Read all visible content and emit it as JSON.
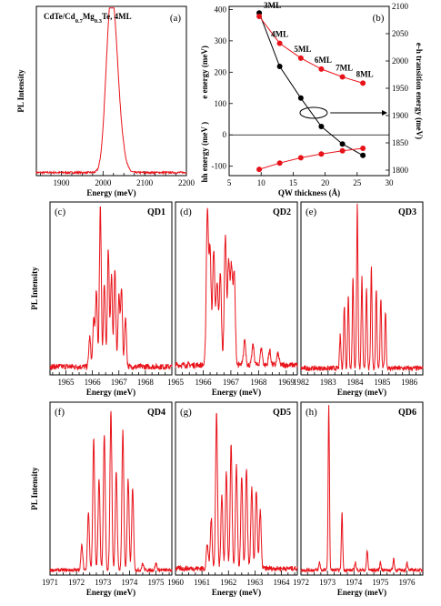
{
  "colors": {
    "curve": "#e8131a",
    "black_series": "#000000",
    "axis": "#000000"
  },
  "chart_data": [
    {
      "id": "a",
      "panel_label": "(a)",
      "type": "line",
      "title": "CdTe/Cd0.7Mg0.3Te, 4ML",
      "title_parts": {
        "main": "CdTe/Cd",
        "sub1": "0.7",
        "mid": "Mg",
        "sub2": "0.3",
        "end": "Te, 4ML"
      },
      "xlabel": "Energy (meV)",
      "ylabel": "PL Intensity",
      "xlim": [
        1840,
        2200
      ],
      "ylim": [
        0,
        1.1
      ],
      "xticks": [
        1900,
        2000,
        2100,
        2200
      ],
      "peaks": [
        {
          "x": 2024,
          "amp": 0.96,
          "w": 17
        },
        {
          "x": 2012,
          "amp": 0.35,
          "w": 14
        },
        {
          "x": 2045,
          "amp": 0.1,
          "w": 14
        }
      ]
    },
    {
      "id": "b",
      "panel_label": "(b)",
      "type": "scatter-line",
      "xlabel": "QW thickness (Å)",
      "ylabel_top": "e energy (meV)",
      "ylabel_bottom": "hh energy  (meV )",
      "ylabel_right": "e-h transition energy  (meV)",
      "xlim": [
        5,
        30
      ],
      "ylim": [
        -130,
        410
      ],
      "y2lim": [
        1790,
        2100
      ],
      "xticks": [
        5,
        10,
        15,
        20,
        25,
        30
      ],
      "yticks": [
        -100,
        0,
        100,
        200,
        300,
        400
      ],
      "y2ticks": [
        1800,
        1850,
        1900,
        1950,
        2000,
        2050,
        2100
      ],
      "series": [
        {
          "name": "e-h transition",
          "axis": "right",
          "color": "black",
          "x": [
            9.7,
            12.9,
            16.2,
            19.4,
            22.7,
            25.9
          ],
          "y": [
            2088,
            1990,
            1932,
            1880,
            1848,
            1827
          ]
        },
        {
          "name": "e",
          "axis": "left",
          "color": "red",
          "x": [
            9.7,
            12.9,
            16.2,
            19.4,
            22.7,
            25.9
          ],
          "y": [
            378,
            292,
            245,
            210,
            185,
            165
          ]
        },
        {
          "name": "hh",
          "axis": "left",
          "color": "red",
          "x": [
            9.7,
            12.9,
            16.2,
            19.4,
            22.7,
            25.9
          ],
          "y": [
            -110,
            -90,
            -73,
            -61,
            -51,
            -43
          ]
        }
      ],
      "point_labels": [
        "3ML",
        "4ML",
        "5ML",
        "6ML",
        "7ML",
        "8ML"
      ]
    },
    {
      "id": "c",
      "panel_label": "(c)",
      "qd_label": "QD1",
      "type": "line",
      "xlabel": "Energy (meV)",
      "ylabel": "PL Intensity",
      "xlim": [
        1964.4,
        1969.0
      ],
      "xticks": [
        1965,
        1966,
        1967,
        1968
      ],
      "ylim": [
        0,
        1.05
      ],
      "peaks": [
        {
          "x": 1965.9,
          "amp": 0.18
        },
        {
          "x": 1966.05,
          "amp": 0.28
        },
        {
          "x": 1966.15,
          "amp": 0.45
        },
        {
          "x": 1966.3,
          "amp": 0.97
        },
        {
          "x": 1966.45,
          "amp": 0.5
        },
        {
          "x": 1966.6,
          "amp": 0.72
        },
        {
          "x": 1966.72,
          "amp": 0.55
        },
        {
          "x": 1966.85,
          "amp": 0.58
        },
        {
          "x": 1967.0,
          "amp": 0.42
        },
        {
          "x": 1967.1,
          "amp": 0.47
        },
        {
          "x": 1967.25,
          "amp": 0.3
        }
      ]
    },
    {
      "id": "d",
      "panel_label": "(d)",
      "qd_label": "QD2",
      "type": "line",
      "xlabel": "Energy (meV)",
      "xlim": [
        1965.0,
        1969.4
      ],
      "xticks": [
        1965,
        1966,
        1967,
        1968,
        1969
      ],
      "ylim": [
        0,
        1.05
      ],
      "peaks": [
        {
          "x": 1966.15,
          "amp": 0.93
        },
        {
          "x": 1966.25,
          "amp": 0.68
        },
        {
          "x": 1966.38,
          "amp": 0.7
        },
        {
          "x": 1966.5,
          "amp": 0.5
        },
        {
          "x": 1966.62,
          "amp": 0.55
        },
        {
          "x": 1966.8,
          "amp": 0.78
        },
        {
          "x": 1966.92,
          "amp": 0.62
        },
        {
          "x": 1967.02,
          "amp": 0.58
        },
        {
          "x": 1967.12,
          "amp": 0.55
        },
        {
          "x": 1967.5,
          "amp": 0.15
        },
        {
          "x": 1967.8,
          "amp": 0.12
        },
        {
          "x": 1968.1,
          "amp": 0.1
        },
        {
          "x": 1968.4,
          "amp": 0.09
        },
        {
          "x": 1968.7,
          "amp": 0.07
        }
      ]
    },
    {
      "id": "e",
      "panel_label": "(e)",
      "qd_label": "QD3",
      "type": "line",
      "xlabel": "Energy (meV)",
      "xlim": [
        1982,
        1986.5
      ],
      "xticks": [
        1982,
        1983,
        1984,
        1985,
        1986
      ],
      "ylim": [
        0,
        1.05
      ],
      "peaks": [
        {
          "x": 1983.45,
          "amp": 0.2
        },
        {
          "x": 1983.6,
          "amp": 0.38
        },
        {
          "x": 1983.75,
          "amp": 0.45
        },
        {
          "x": 1983.92,
          "amp": 0.55
        },
        {
          "x": 1984.08,
          "amp": 1.0
        },
        {
          "x": 1984.25,
          "amp": 0.55
        },
        {
          "x": 1984.42,
          "amp": 0.5
        },
        {
          "x": 1984.6,
          "amp": 0.62
        },
        {
          "x": 1984.78,
          "amp": 0.48
        },
        {
          "x": 1984.95,
          "amp": 0.42
        },
        {
          "x": 1985.12,
          "amp": 0.35
        }
      ]
    },
    {
      "id": "f",
      "panel_label": "(f)",
      "qd_label": "QD4",
      "type": "line",
      "xlabel": "Energy (meV)",
      "ylabel": "PL Intensity",
      "xlim": [
        1971,
        1975.6
      ],
      "xticks": [
        1971,
        1972,
        1973,
        1974,
        1975
      ],
      "ylim": [
        0,
        1.05
      ],
      "peaks": [
        {
          "x": 1972.2,
          "amp": 0.15
        },
        {
          "x": 1972.45,
          "amp": 0.35
        },
        {
          "x": 1972.65,
          "amp": 0.8
        },
        {
          "x": 1972.85,
          "amp": 0.55
        },
        {
          "x": 1973.05,
          "amp": 0.82
        },
        {
          "x": 1973.3,
          "amp": 0.97
        },
        {
          "x": 1973.5,
          "amp": 0.6
        },
        {
          "x": 1973.75,
          "amp": 0.85
        },
        {
          "x": 1973.95,
          "amp": 0.55
        },
        {
          "x": 1974.12,
          "amp": 0.5
        },
        {
          "x": 1974.5,
          "amp": 0.04
        },
        {
          "x": 1975.0,
          "amp": 0.04
        }
      ]
    },
    {
      "id": "g",
      "panel_label": "(g)",
      "qd_label": "QD5",
      "type": "line",
      "xlabel": "Energy (meV)",
      "xlim": [
        1960,
        1964.6
      ],
      "xticks": [
        1960,
        1961,
        1962,
        1963,
        1964
      ],
      "ylim": [
        0,
        1.05
      ],
      "peaks": [
        {
          "x": 1961.2,
          "amp": 0.15
        },
        {
          "x": 1961.35,
          "amp": 0.3
        },
        {
          "x": 1961.55,
          "amp": 0.95
        },
        {
          "x": 1961.75,
          "amp": 0.45
        },
        {
          "x": 1961.92,
          "amp": 0.58
        },
        {
          "x": 1962.1,
          "amp": 0.75
        },
        {
          "x": 1962.3,
          "amp": 0.62
        },
        {
          "x": 1962.5,
          "amp": 0.55
        },
        {
          "x": 1962.68,
          "amp": 0.6
        },
        {
          "x": 1962.88,
          "amp": 0.5
        },
        {
          "x": 1963.05,
          "amp": 0.48
        },
        {
          "x": 1963.2,
          "amp": 0.35
        }
      ]
    },
    {
      "id": "h",
      "panel_label": "(h)",
      "qd_label": "QD6",
      "type": "line",
      "xlabel": "Energy (meV)",
      "xlim": [
        1972,
        1976.6
      ],
      "xticks": [
        1972,
        1973,
        1974,
        1975,
        1976
      ],
      "ylim": [
        0,
        1.05
      ],
      "peaks": [
        {
          "x": 1972.7,
          "amp": 0.05
        },
        {
          "x": 1973.05,
          "amp": 1.0
        },
        {
          "x": 1973.55,
          "amp": 0.35
        },
        {
          "x": 1974.05,
          "amp": 0.05
        },
        {
          "x": 1974.5,
          "amp": 0.12
        },
        {
          "x": 1975.0,
          "amp": 0.05
        },
        {
          "x": 1975.5,
          "amp": 0.07
        },
        {
          "x": 1976.0,
          "amp": 0.05
        }
      ]
    }
  ]
}
